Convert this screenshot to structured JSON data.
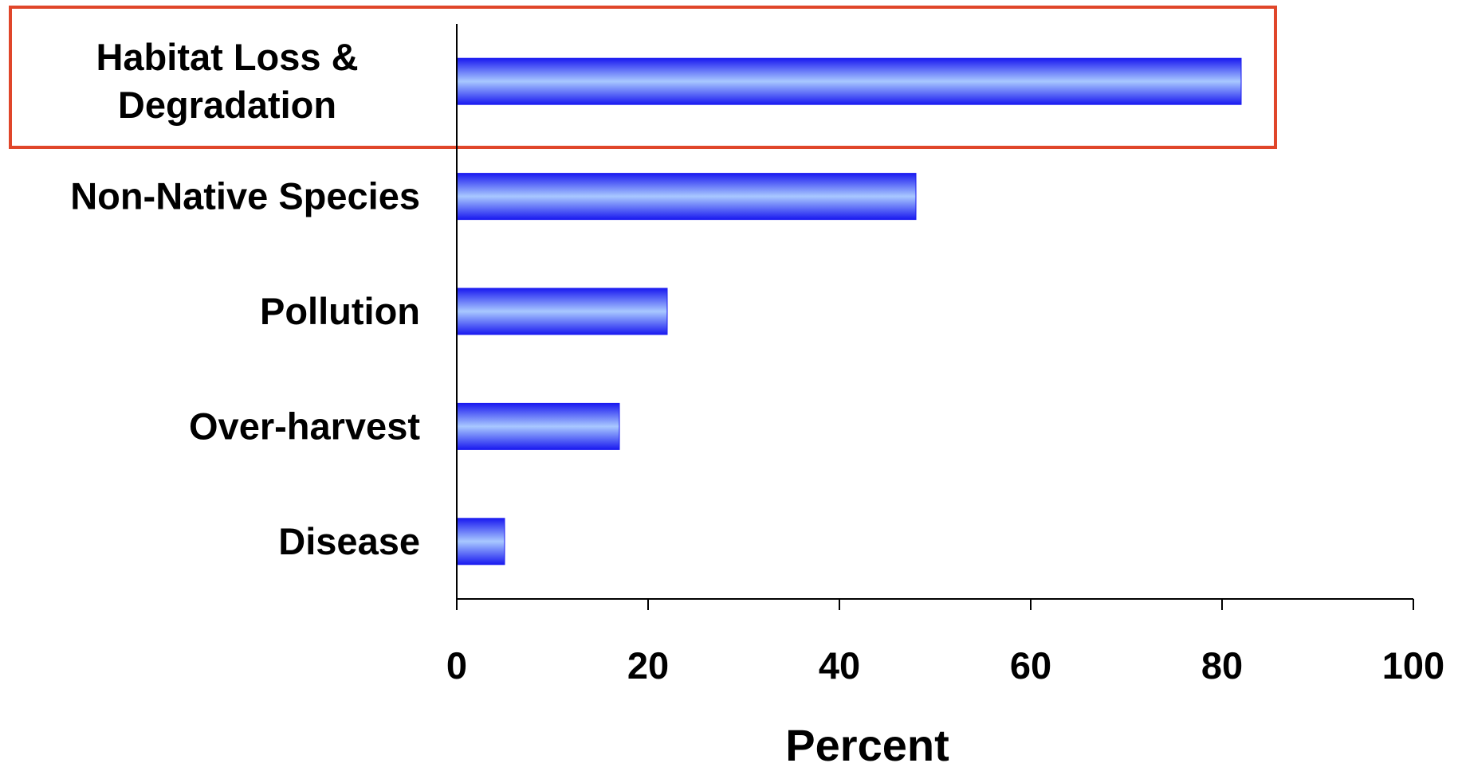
{
  "chart_data": {
    "type": "bar",
    "orientation": "horizontal",
    "categories": [
      [
        "Habitat Loss &",
        "Degradation"
      ],
      [
        "Non-Native Species"
      ],
      [
        "Pollution"
      ],
      [
        "Over-harvest"
      ],
      [
        "Disease"
      ]
    ],
    "values": [
      82,
      48,
      22,
      17,
      5
    ],
    "xlabel": "Percent",
    "ylabel": "",
    "xlim": [
      0,
      100
    ],
    "xticks": [
      "0",
      "20",
      "40",
      "60",
      "80",
      "100"
    ],
    "grid": false,
    "highlighted_category_index": 0
  },
  "colors": {
    "bar_dark": "#1a1af0",
    "bar_light": "#a8c8ff",
    "axis": "#000000",
    "highlight_box": "#e0462a"
  }
}
